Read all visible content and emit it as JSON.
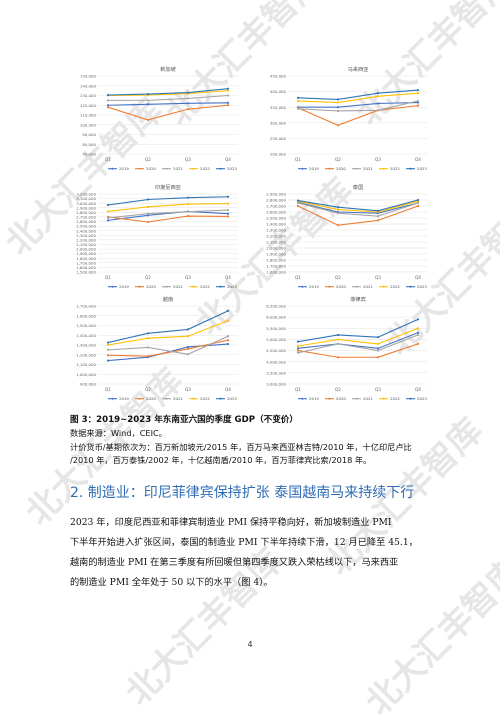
{
  "figure": {
    "caption": "图 3：2019~2023 年东南亚六国的季度 GDP（不变价）",
    "source": "数据来源：Wind，CEIC。",
    "note_line1": "计价货币/基期依次为：百万新加坡元/2015 年，百万马来西亚林吉特/2010 年，十亿印尼卢比",
    "note_line2": "/2010 年，百万泰铢/2002 年，十亿越南盾/2010 年，百万菲律宾比索/2018 年。"
  },
  "section": {
    "heading": "2.  制造业：印尼菲律宾保持扩张  泰国越南马来持续下行",
    "para_lines": [
      "2023 年，印度尼西亚和菲律宾制造业 PMI 保持平稳向好，新加坡制造业 PMI",
      "下半年开始进入扩张区间，泰国的制造业 PMI 下半年持续下滑，12 月已降至 45.1，",
      "越南的制造业 PMI 在第三季度有所回暖但第四季度又跌入荣枯线以下，马来西亚",
      "的制造业 PMI 全年处于 50 以下的水平（图 4）。"
    ]
  },
  "page_number": "4",
  "watermark_text": "北大汇丰智库",
  "series_colors": {
    "2019": "#4472C4",
    "2020": "#ED7D31",
    "2021": "#A5A5A5",
    "2022": "#FFC000",
    "2023": "#2E75B6"
  },
  "chart_data": [
    {
      "type": "line",
      "title": "新加坡",
      "categories": [
        "Q1",
        "Q2",
        "Q3",
        "Q4"
      ],
      "yticks": [
        "150,000",
        "140,000",
        "130,000",
        "120,000",
        "110,000",
        "100,000",
        "90,000",
        "80,000",
        "70,000"
      ],
      "ylim": [
        70000,
        150000
      ],
      "series": [
        {
          "name": "2019",
          "values": [
            120000,
            121000,
            122000,
            122500
          ]
        },
        {
          "name": "2020",
          "values": [
            118000,
            105000,
            116000,
            120000
          ]
        },
        {
          "name": "2021",
          "values": [
            125000,
            125000,
            127000,
            130000
          ]
        },
        {
          "name": "2022",
          "values": [
            130000,
            130500,
            132000,
            135000
          ]
        },
        {
          "name": "2023",
          "values": [
            130500,
            131500,
            133000,
            137000
          ]
        }
      ]
    },
    {
      "type": "line",
      "title": "马来西亚",
      "categories": [
        "Q1",
        "Q2",
        "Q3",
        "Q4"
      ],
      "yticks": [
        "450,000",
        "400,000",
        "350,000",
        "300,000",
        "250,000",
        "200,000"
      ],
      "ylim": [
        200000,
        450000
      ],
      "series": [
        {
          "name": "2019",
          "values": [
            350000,
            350000,
            362000,
            365000
          ]
        },
        {
          "name": "2020",
          "values": [
            348000,
            292000,
            340000,
            355000
          ]
        },
        {
          "name": "2021",
          "values": [
            345000,
            338000,
            340000,
            370000
          ]
        },
        {
          "name": "2022",
          "values": [
            370000,
            365000,
            385000,
            395000
          ]
        },
        {
          "name": "2023",
          "values": [
            380000,
            375000,
            395000,
            405000
          ]
        }
      ]
    },
    {
      "type": "line",
      "title": "印度尼西亚",
      "categories": [
        "Q1",
        "Q2",
        "Q3",
        "Q4"
      ],
      "yticks": [
        "3,200,000",
        "3,100,000",
        "3,000,000",
        "2,900,000",
        "2,800,000",
        "2,700,000",
        "2,600,000",
        "2,500,000",
        "2,400,000",
        "2,300,000",
        "2,200,000",
        "2,100,000",
        "2,000,000",
        "1,900,000",
        "1,800,000",
        "1,700,000",
        "1,600,000",
        "1,500,000"
      ],
      "ylim": [
        1500000,
        3200000
      ],
      "series": [
        {
          "name": "2019",
          "values": [
            2625000,
            2735000,
            2820000,
            2770000
          ]
        },
        {
          "name": "2020",
          "values": [
            2700000,
            2590000,
            2720000,
            2710000
          ]
        },
        {
          "name": "2021",
          "values": [
            2680000,
            2770000,
            2815000,
            2850000
          ]
        },
        {
          "name": "2022",
          "values": [
            2820000,
            2920000,
            2980000,
            2990000
          ]
        },
        {
          "name": "2023",
          "values": [
            2960000,
            3080000,
            3120000,
            3140000
          ]
        }
      ]
    },
    {
      "type": "line",
      "title": "泰国",
      "categories": [
        "Q1",
        "Q2",
        "Q3",
        "Q4"
      ],
      "yticks": [
        "2,900,000",
        "2,800,000",
        "2,700,000",
        "2,600,000",
        "2,500,000",
        "2,400,000",
        "2,300,000",
        "2,200,000",
        "2,100,000",
        "2,000,000",
        "1,900,000",
        "1,800,000",
        "1,700,000",
        "1,600,000"
      ],
      "ylim": [
        1600000,
        2900000
      ],
      "series": [
        {
          "name": "2019",
          "values": [
            2760000,
            2600000,
            2580000,
            2750000
          ]
        },
        {
          "name": "2020",
          "values": [
            2700000,
            2380000,
            2460000,
            2700000
          ]
        },
        {
          "name": "2021",
          "values": [
            2750000,
            2580000,
            2530000,
            2750000
          ]
        },
        {
          "name": "2022",
          "values": [
            2780000,
            2640000,
            2600000,
            2780000
          ]
        },
        {
          "name": "2023",
          "values": [
            2790000,
            2680000,
            2620000,
            2800000
          ]
        }
      ]
    },
    {
      "type": "line",
      "title": "越南",
      "categories": [
        "Q1",
        "Q2",
        "Q3",
        "Q4"
      ],
      "yticks": [
        "1,700,000",
        "1,600,000",
        "1,500,000",
        "1,400,000",
        "1,300,000",
        "1,200,000",
        "1,100,000",
        "1,000,000",
        "900,000"
      ],
      "ylim": [
        900000,
        1700000
      ],
      "series": [
        {
          "name": "2019",
          "values": [
            1140000,
            1175000,
            1280000,
            1310000
          ]
        },
        {
          "name": "2020",
          "values": [
            1195000,
            1185000,
            1260000,
            1350000
          ]
        },
        {
          "name": "2021",
          "values": [
            1250000,
            1275000,
            1205000,
            1390000
          ]
        },
        {
          "name": "2022",
          "values": [
            1300000,
            1370000,
            1390000,
            1550000
          ]
        },
        {
          "name": "2023",
          "values": [
            1325000,
            1420000,
            1460000,
            1650000
          ]
        }
      ]
    },
    {
      "type": "line",
      "title": "菲律宾",
      "categories": [
        "Q1",
        "Q2",
        "Q3",
        "Q4"
      ],
      "yticks": [
        "6,500,000",
        "6,000,000",
        "5,500,000",
        "5,000,000",
        "4,500,000",
        "4,000,000",
        "3,500,000",
        "3,000,000"
      ],
      "ylim": [
        3000000,
        6500000
      ],
      "series": [
        {
          "name": "2019",
          "values": [
            4600000,
            4800000,
            4600000,
            5300000
          ]
        },
        {
          "name": "2020",
          "values": [
            4500000,
            4200000,
            4200000,
            4800000
          ]
        },
        {
          "name": "2021",
          "values": [
            4400000,
            4800000,
            4500000,
            5200000
          ]
        },
        {
          "name": "2022",
          "values": [
            4700000,
            5000000,
            4800000,
            5500000
          ]
        },
        {
          "name": "2023",
          "values": [
            4900000,
            5200000,
            5100000,
            5900000
          ]
        }
      ]
    }
  ]
}
